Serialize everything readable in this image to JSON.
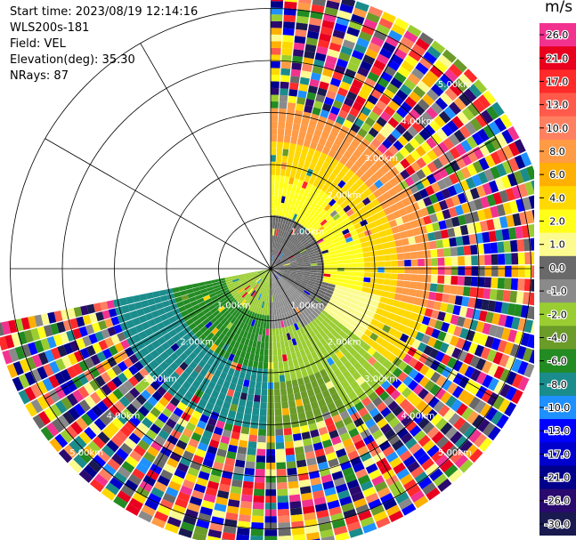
{
  "header": {
    "start_time": "Start time: 2023/08/19 12:14:16",
    "instrument": "WLS200s-181",
    "field": "Field: VEL",
    "elevation": "Elevation(deg): 35.30",
    "nrays": "NRays: 87"
  },
  "colorbar": {
    "unit": "m/s",
    "labels": [
      "26.0",
      "21.0",
      "17.0",
      "13.0",
      "10.0",
      "8.0",
      "6.0",
      "4.0",
      "2.0",
      "1.0",
      "0.0",
      "-1.0",
      "-2.0",
      "-4.0",
      "-6.0",
      "-8.0",
      "-10.0",
      "-13.0",
      "-17.0",
      "-21.0",
      "-26.0",
      "-30.0"
    ],
    "colors": [
      "#f2328f",
      "#e8001e",
      "#ff2a2a",
      "#ff5a4a",
      "#ff8060",
      "#ff9a45",
      "#ffb000",
      "#ffd800",
      "#ffff1a",
      "#fbfb90",
      "#696969",
      "#8a8a8a",
      "#9acd32",
      "#6b9b28",
      "#228b22",
      "#1a8c8c",
      "#1e90ff",
      "#0000ff",
      "#0000cd",
      "#00008b",
      "#2a0a6e",
      "#1a1a50"
    ]
  },
  "chart_data": {
    "type": "heatmap",
    "title": "",
    "ring_labels": [
      "1.00km",
      "2.00km",
      "3.00km",
      "4.00km",
      "5.00km"
    ],
    "range_rings_km": [
      1,
      2,
      3,
      4,
      5
    ],
    "spoke_angles_deg": [
      0,
      30,
      60,
      90,
      120,
      150,
      180,
      210,
      240,
      270,
      300,
      330
    ],
    "data_sector_deg": [
      0,
      259
    ],
    "max_range_km": 5.4,
    "field_unit": "m/s",
    "value_range": [
      -30,
      26
    ],
    "grid": true,
    "colorbar_position": "right"
  }
}
